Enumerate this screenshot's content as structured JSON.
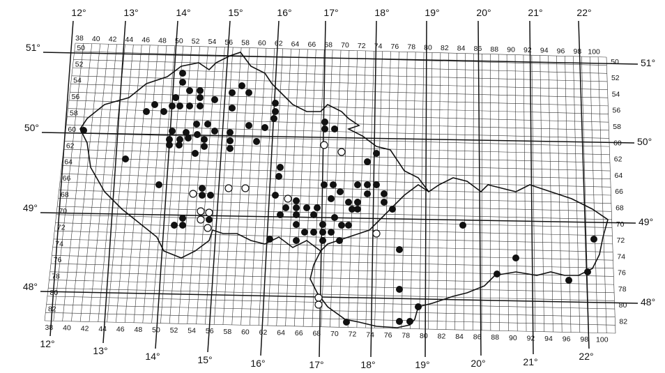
{
  "longitude_labels_top": [
    "12°",
    "13°",
    "14°",
    "15°",
    "16°",
    "17°",
    "18°",
    "19°",
    "20°",
    "21°",
    "22°"
  ],
  "longitude_labels_bottom": [
    "12°",
    "13°",
    "14°",
    "15°",
    "16°",
    "17°",
    "18°",
    "19°",
    "20°",
    "21°",
    "22°"
  ],
  "latitude_labels_left": [
    "51°",
    "50°",
    "49°",
    "48°"
  ],
  "latitude_labels_right": [
    "51°",
    "50°",
    "49°",
    "48°"
  ],
  "column_numbers_top": [
    38,
    40,
    42,
    44,
    46,
    48,
    50,
    52,
    54,
    56,
    58,
    60,
    62,
    64,
    66,
    68,
    70,
    72,
    74,
    76,
    78,
    80,
    82,
    84,
    86,
    88,
    90,
    92,
    94,
    96,
    98,
    100
  ],
  "column_numbers_bottom": [
    38,
    40,
    42,
    44,
    46,
    48,
    50,
    52,
    54,
    56,
    58,
    60,
    62,
    64,
    66,
    68,
    70,
    72,
    74,
    76,
    78,
    80,
    82,
    84,
    86,
    88,
    90,
    92,
    94,
    96,
    98,
    100
  ],
  "row_numbers_left": [
    50,
    52,
    54,
    56,
    58,
    60,
    62,
    64,
    66,
    68,
    70,
    72,
    74,
    76,
    78,
    80,
    82
  ],
  "row_numbers_right": [
    50,
    52,
    54,
    56,
    58,
    60,
    62,
    64,
    66,
    68,
    70,
    72,
    74,
    76,
    78,
    80,
    82
  ]
}
